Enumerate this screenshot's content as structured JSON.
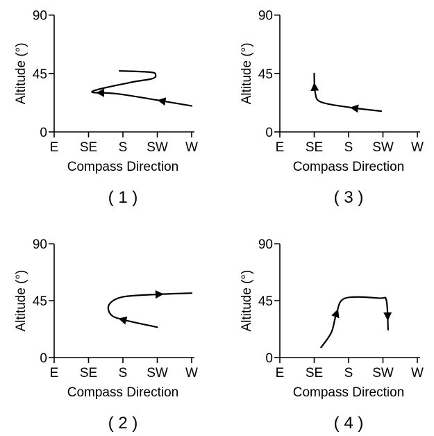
{
  "chart_data": [
    {
      "type": "line",
      "panel_label": "( 1 )",
      "xlabel": "Compass Direction",
      "ylabel": "Altitude (°)",
      "x_categories": [
        "E",
        "SE",
        "S",
        "SW",
        "W"
      ],
      "y_ticks": [
        "0",
        "45",
        "90"
      ],
      "ylim": [
        0,
        90
      ],
      "path": [
        [
          4.0,
          20
        ],
        [
          1.95,
          29
        ],
        [
          1.1,
          31
        ],
        [
          2.2,
          38
        ],
        [
          2.85,
          41
        ],
        [
          2.95,
          44
        ],
        [
          2.8,
          46
        ],
        [
          1.9,
          47
        ]
      ],
      "arrows_at": [
        0.15,
        0.45
      ]
    },
    {
      "type": "line",
      "panel_label": "( 3 )",
      "xlabel": "Compass Direction",
      "ylabel": "Altitude (°)",
      "x_categories": [
        "E",
        "SE",
        "S",
        "SW",
        "W"
      ],
      "y_ticks": [
        "0",
        "45",
        "90"
      ],
      "ylim": [
        0,
        90
      ],
      "path": [
        [
          2.95,
          16
        ],
        [
          2.0,
          19
        ],
        [
          1.2,
          23
        ],
        [
          1.03,
          30
        ],
        [
          1.0,
          45
        ]
      ],
      "arrows_at": [
        0.3,
        0.86
      ]
    },
    {
      "type": "line",
      "panel_label": "( 2 )",
      "xlabel": "Compass Direction",
      "ylabel": "Altitude (°)",
      "x_categories": [
        "E",
        "SE",
        "S",
        "SW",
        "W"
      ],
      "y_ticks": [
        "0",
        "45",
        "90"
      ],
      "ylim": [
        0,
        90
      ],
      "path": [
        [
          3.0,
          24
        ],
        [
          2.0,
          30
        ],
        [
          1.65,
          34
        ],
        [
          1.6,
          42
        ],
        [
          2.0,
          48
        ],
        [
          3.0,
          50
        ],
        [
          4.0,
          51
        ]
      ],
      "arrows_at": [
        0.25,
        0.78
      ]
    },
    {
      "type": "line",
      "panel_label": "( 4 )",
      "xlabel": "Compass Direction",
      "ylabel": "Altitude (°)",
      "x_categories": [
        "E",
        "SE",
        "S",
        "SW",
        "W"
      ],
      "y_ticks": [
        "0",
        "45",
        "90"
      ],
      "ylim": [
        0,
        90
      ],
      "path": [
        [
          1.2,
          8
        ],
        [
          1.5,
          20
        ],
        [
          1.65,
          35
        ],
        [
          1.9,
          47
        ],
        [
          2.9,
          47
        ],
        [
          3.1,
          45
        ],
        [
          3.15,
          22
        ]
      ],
      "arrows_at": [
        0.3,
        0.9
      ]
    }
  ]
}
